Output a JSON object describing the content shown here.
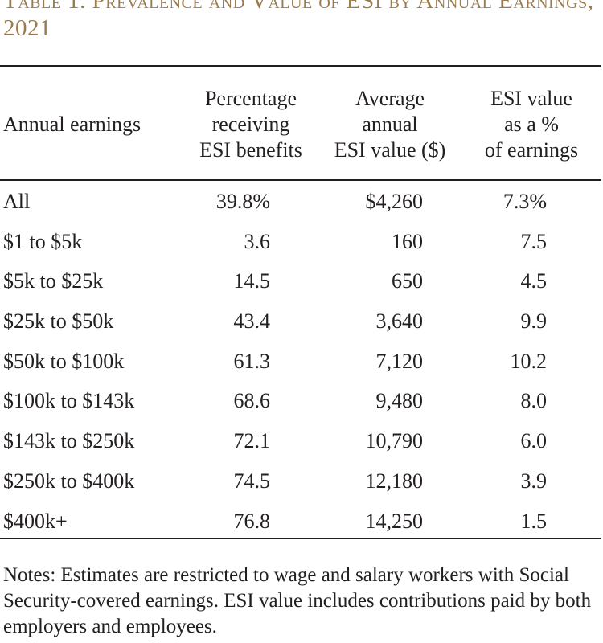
{
  "title": "Table 1. Prevalence and Value of ESI by Annual Earnings, 2021",
  "headers": [
    [
      "Annual earnings"
    ],
    [
      "Percentage",
      "receiving",
      "ESI benefits"
    ],
    [
      "Average",
      "annual",
      "ESI value ($)"
    ],
    [
      "ESI value",
      "as a %",
      "of earnings"
    ]
  ],
  "rows": [
    [
      "All",
      "39.8%",
      "$4,260",
      "7.3%"
    ],
    [
      "$1 to $5k",
      "3.6",
      "160",
      "7.5"
    ],
    [
      "$5k to $25k",
      "14.5",
      "650",
      "4.5"
    ],
    [
      "$25k to $50k",
      "43.4",
      "3,640",
      "9.9"
    ],
    [
      "$50k to $100k",
      "61.3",
      "7,120",
      "10.2"
    ],
    [
      "$100k to $143k",
      "68.6",
      "9,480",
      "8.0"
    ],
    [
      "$143k to $250k",
      "72.1",
      "10,790",
      "6.0"
    ],
    [
      "$250k to $400k",
      "74.5",
      "12,180",
      "3.9"
    ],
    [
      "$400k+",
      "76.8",
      "14,250",
      "1.5"
    ]
  ],
  "notes": "Notes: Estimates are restricted to wage and salary workers with Social Security-covered earnings.  ESI value includes contributions paid by both employers and employees."
}
